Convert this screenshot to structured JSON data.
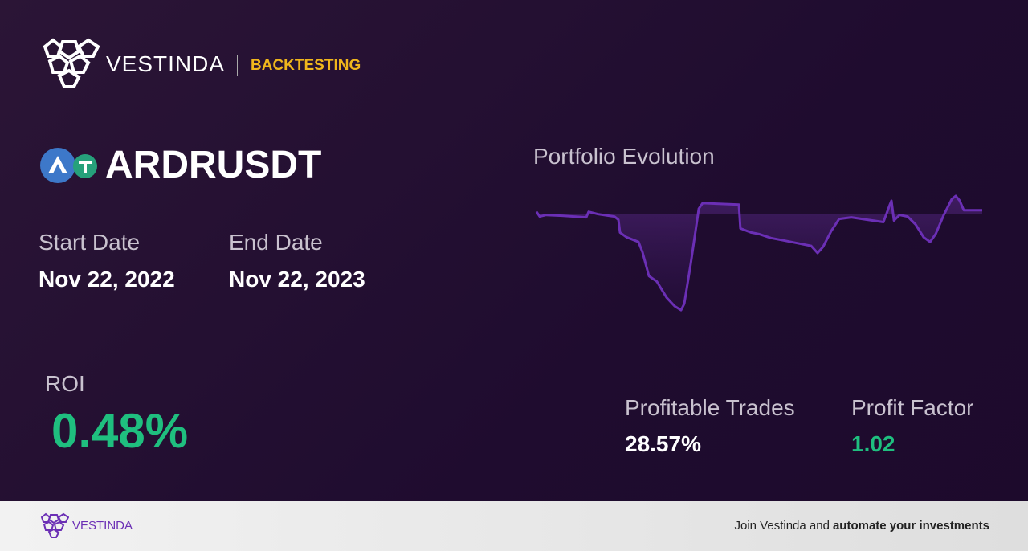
{
  "header": {
    "brand": "VESTINDA",
    "section": "BACKTESTING"
  },
  "pair": "ARDRUSDT",
  "start_date": {
    "label": "Start Date",
    "value": "Nov 22, 2022"
  },
  "end_date": {
    "label": "End Date",
    "value": "Nov 22, 2023"
  },
  "roi": {
    "label": "ROI",
    "value": "0.48%"
  },
  "profitable_trades": {
    "label": "Profitable Trades",
    "value": "28.57%"
  },
  "profit_factor": {
    "label": "Profit Factor",
    "value": "1.02"
  },
  "chart_data": {
    "type": "line",
    "title": "Portfolio Evolution",
    "color": "#6b2fb5",
    "x": [
      0,
      2.6,
      7.9,
      21,
      40.8,
      42.7,
      50.6,
      63.8,
      67.1,
      68.4,
      73.7,
      83.5,
      86.8,
      92.1,
      98.6,
      106.5,
      113.1,
      118.4,
      121,
      126.3,
      132.9,
      136.1,
      165.7,
      167,
      175.6,
      182.2,
      192,
      201.9,
      218.4,
      224.9,
      230.2,
      234.8,
      241.4,
      247.9,
      257.8,
      271,
      284.1,
      289.4,
      290.7,
      292.7,
      297.3,
      303.9,
      310.5,
      317,
      322.3,
      326.9,
      333.5,
      340.1,
      343.3,
      346.6,
      349.9,
      365
    ],
    "values": [
      0.3,
      -0.3,
      -0.1,
      -0.2,
      -0.4,
      0.3,
      0,
      -0.3,
      -0.7,
      -2.3,
      -2.9,
      -3.5,
      -4.8,
      -7.8,
      -8.5,
      -10.5,
      -11.6,
      -12.1,
      -11.3,
      -6.3,
      0.7,
      1.4,
      1.2,
      -1.8,
      -2.3,
      -2.5,
      -3,
      -3.3,
      -3.8,
      -4,
      -4.9,
      -4.1,
      -2.1,
      -0.6,
      -0.4,
      -0.7,
      -1,
      1.2,
      1.7,
      -0.8,
      -0.1,
      -0.3,
      -1.3,
      -2.9,
      -3.5,
      -2.5,
      -0.1,
      1.9,
      2.3,
      1.7,
      0.5,
      0.5
    ],
    "xlim": [
      0,
      365
    ],
    "ylim": [
      -12.5,
      2.5
    ]
  },
  "footer": {
    "brand": "VESTINDA",
    "text": "Join Vestinda and",
    "emphasis": "automate your investments"
  }
}
